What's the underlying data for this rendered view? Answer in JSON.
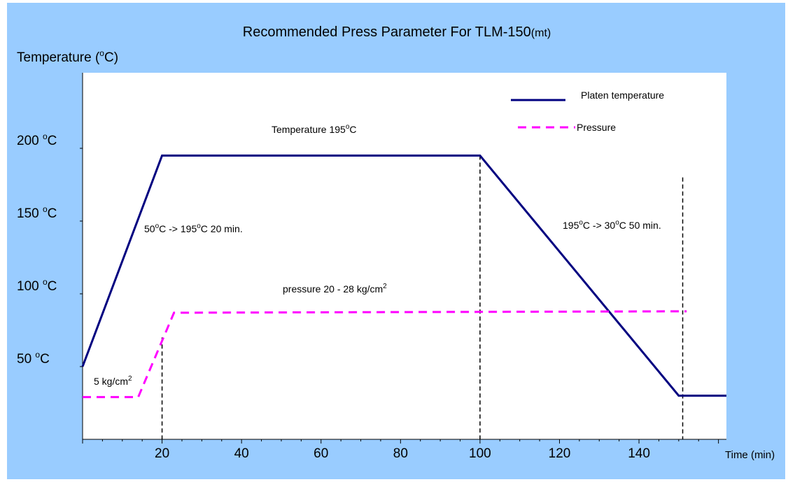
{
  "chart_data": {
    "type": "line",
    "title": "Recommended Press Parameter For TLM-150",
    "title_suffix": "(mt)",
    "ylabel_pre": "Temperature (",
    "ylabel_sup": "o",
    "ylabel_post": "C)",
    "xlabel": "Time (min)",
    "xlim": [
      0,
      162
    ],
    "ylim": [
      0,
      200
    ],
    "x_ticks": [
      20,
      40,
      60,
      80,
      100,
      120,
      140
    ],
    "y_tick_labels": [
      {
        "value": 200,
        "num": "200 ",
        "sup": "o",
        "unit": "C"
      },
      {
        "value": 150,
        "num": "150 ",
        "sup": "o",
        "unit": "C"
      },
      {
        "value": 100,
        "num": "100 ",
        "sup": "o",
        "unit": "C"
      },
      {
        "value": 50,
        "num": "50 ",
        "sup": "o",
        "unit": "C"
      }
    ],
    "series": [
      {
        "name": "Platen temperature",
        "color": "#000080",
        "style": "solid",
        "x": [
          0,
          20,
          100,
          150,
          162
        ],
        "y": [
          50,
          195,
          195,
          30,
          30
        ]
      },
      {
        "name": "Pressure",
        "color": "#ff00ff",
        "style": "dashed",
        "x": [
          0,
          14,
          23,
          152
        ],
        "y": [
          29,
          29,
          87,
          88
        ]
      }
    ],
    "vlines": [
      {
        "x": 20,
        "y_top": 70
      },
      {
        "x": 100,
        "y_top": 195
      },
      {
        "x": 151,
        "y_top": 180
      }
    ],
    "annotations": {
      "plateau": {
        "pre": "Temperature 195",
        "sup": "o",
        "post": "C"
      },
      "ramp_up": {
        "a": "50",
        "b": "C -> 195",
        "c": "C 20 min.",
        "sup": "o"
      },
      "ramp_down": {
        "a": "195",
        "b": "C -> 30",
        "c": "C 50 min.",
        "sup": "o"
      },
      "pressure_high": {
        "pre": "pressure 20 - 28 kg/cm",
        "sup": "2"
      },
      "pressure_low": {
        "pre": "5 kg/cm",
        "sup": "2"
      }
    },
    "grid": false,
    "legend": "top-right"
  }
}
